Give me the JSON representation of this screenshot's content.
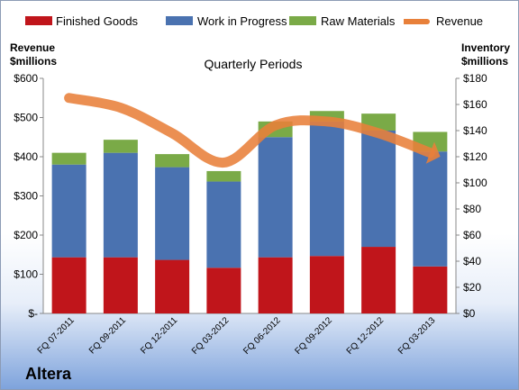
{
  "company": "Altera",
  "chart_data": {
    "type": "bar",
    "stacked": true,
    "title": "Quarterly Periods",
    "ylabel_left": "Revenue\n$millions",
    "ylabel_right": "Inventory\n$millions",
    "categories": [
      "FQ 07-2011",
      "FQ 09-2011",
      "FQ 12-2011",
      "FQ 03-2012",
      "FQ 06-2012",
      "FQ 09-2012",
      "FQ 12-2012",
      "FQ 03-2013"
    ],
    "left_ticks": [
      "$-",
      "$100",
      "$200",
      "$300",
      "$400",
      "$500",
      "$600"
    ],
    "right_ticks": [
      "$0",
      "$20",
      "$40",
      "$60",
      "$80",
      "$100",
      "$120",
      "$140",
      "$160",
      "$180"
    ],
    "left_ylim": [
      0,
      600
    ],
    "right_ylim": [
      0,
      180
    ],
    "series": [
      {
        "name": "Finished Goods",
        "color": "#c0151b",
        "axis": "right",
        "values": [
          43,
          43,
          41,
          35,
          43,
          44,
          51,
          36
        ]
      },
      {
        "name": "Work in Progress",
        "color": "#4a72b0",
        "axis": "right",
        "values": [
          71,
          80,
          71,
          66,
          92,
          103,
          89,
          88
        ]
      },
      {
        "name": "Raw Materials",
        "color": "#7aaa47",
        "axis": "right",
        "values": [
          9,
          10,
          10,
          8,
          12,
          8,
          13,
          15
        ]
      },
      {
        "name": "Revenue",
        "color": "#e8803a",
        "axis": "left",
        "type": "line",
        "values": [
          550,
          525,
          460,
          385,
          480,
          490,
          460,
          410
        ]
      }
    ],
    "legend_position": "top",
    "grid": false
  }
}
